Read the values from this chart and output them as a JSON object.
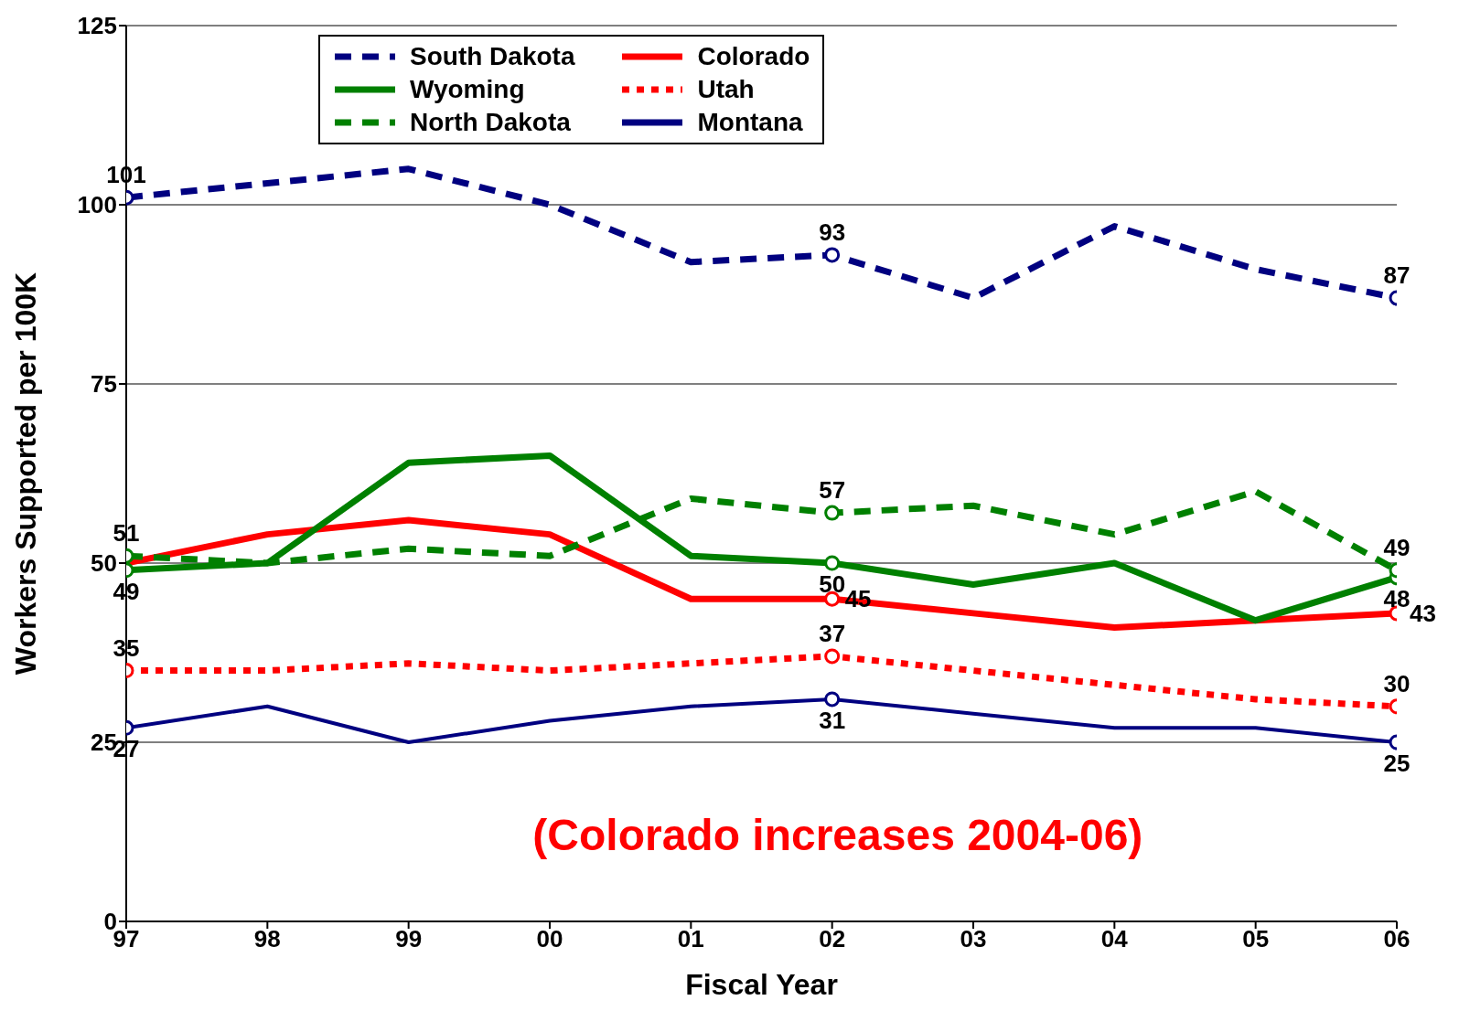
{
  "chart_data": {
    "type": "line",
    "xlabel": "Fiscal Year",
    "ylabel": "Workers Supported per 100K",
    "categories": [
      "97",
      "98",
      "99",
      "00",
      "01",
      "02",
      "03",
      "04",
      "05",
      "06"
    ],
    "series": [
      {
        "name": "South Dakota",
        "color": "#000080",
        "line_style": "dashed",
        "values": [
          101,
          103,
          105,
          100,
          92,
          93,
          87,
          97,
          91,
          87
        ],
        "value_labels": [
          "101",
          null,
          null,
          null,
          null,
          "93",
          null,
          null,
          null,
          "87"
        ]
      },
      {
        "name": "Colorado",
        "color": "#ff0000",
        "line_style": "solid",
        "values": [
          50,
          54,
          56,
          54,
          45,
          45,
          43,
          41,
          42,
          43
        ],
        "value_labels": [
          null,
          null,
          null,
          null,
          null,
          "45",
          null,
          null,
          null,
          "43"
        ]
      },
      {
        "name": "Wyoming",
        "color": "#008000",
        "line_style": "solid",
        "values": [
          49,
          50,
          64,
          65,
          51,
          50,
          47,
          50,
          42,
          48
        ],
        "value_labels": [
          "49",
          null,
          null,
          null,
          null,
          "50",
          null,
          null,
          null,
          "48"
        ]
      },
      {
        "name": "Utah",
        "color": "#ff0000",
        "line_style": "dotted",
        "values": [
          35,
          35,
          36,
          35,
          36,
          37,
          35,
          33,
          31,
          30
        ],
        "value_labels": [
          "35",
          null,
          null,
          null,
          null,
          "37",
          null,
          null,
          null,
          "30"
        ]
      },
      {
        "name": "North Dakota",
        "color": "#008000",
        "line_style": "dashed",
        "values": [
          51,
          50,
          52,
          51,
          59,
          57,
          58,
          54,
          60,
          49
        ],
        "value_labels": [
          "51",
          null,
          null,
          null,
          null,
          "57",
          null,
          null,
          null,
          "49"
        ]
      },
      {
        "name": "Montana",
        "color": "#000080",
        "line_style": "solid",
        "values": [
          27,
          30,
          25,
          28,
          30,
          31,
          29,
          27,
          27,
          25
        ],
        "value_labels": [
          "27",
          null,
          null,
          null,
          null,
          "31",
          null,
          null,
          null,
          "25"
        ]
      }
    ],
    "ylim": [
      0,
      125
    ],
    "yticks": [
      0,
      25,
      50,
      75,
      100,
      125
    ],
    "grid": "y",
    "legend": "top left",
    "annotations": [
      "(Colorado increases 2004-06)"
    ]
  }
}
